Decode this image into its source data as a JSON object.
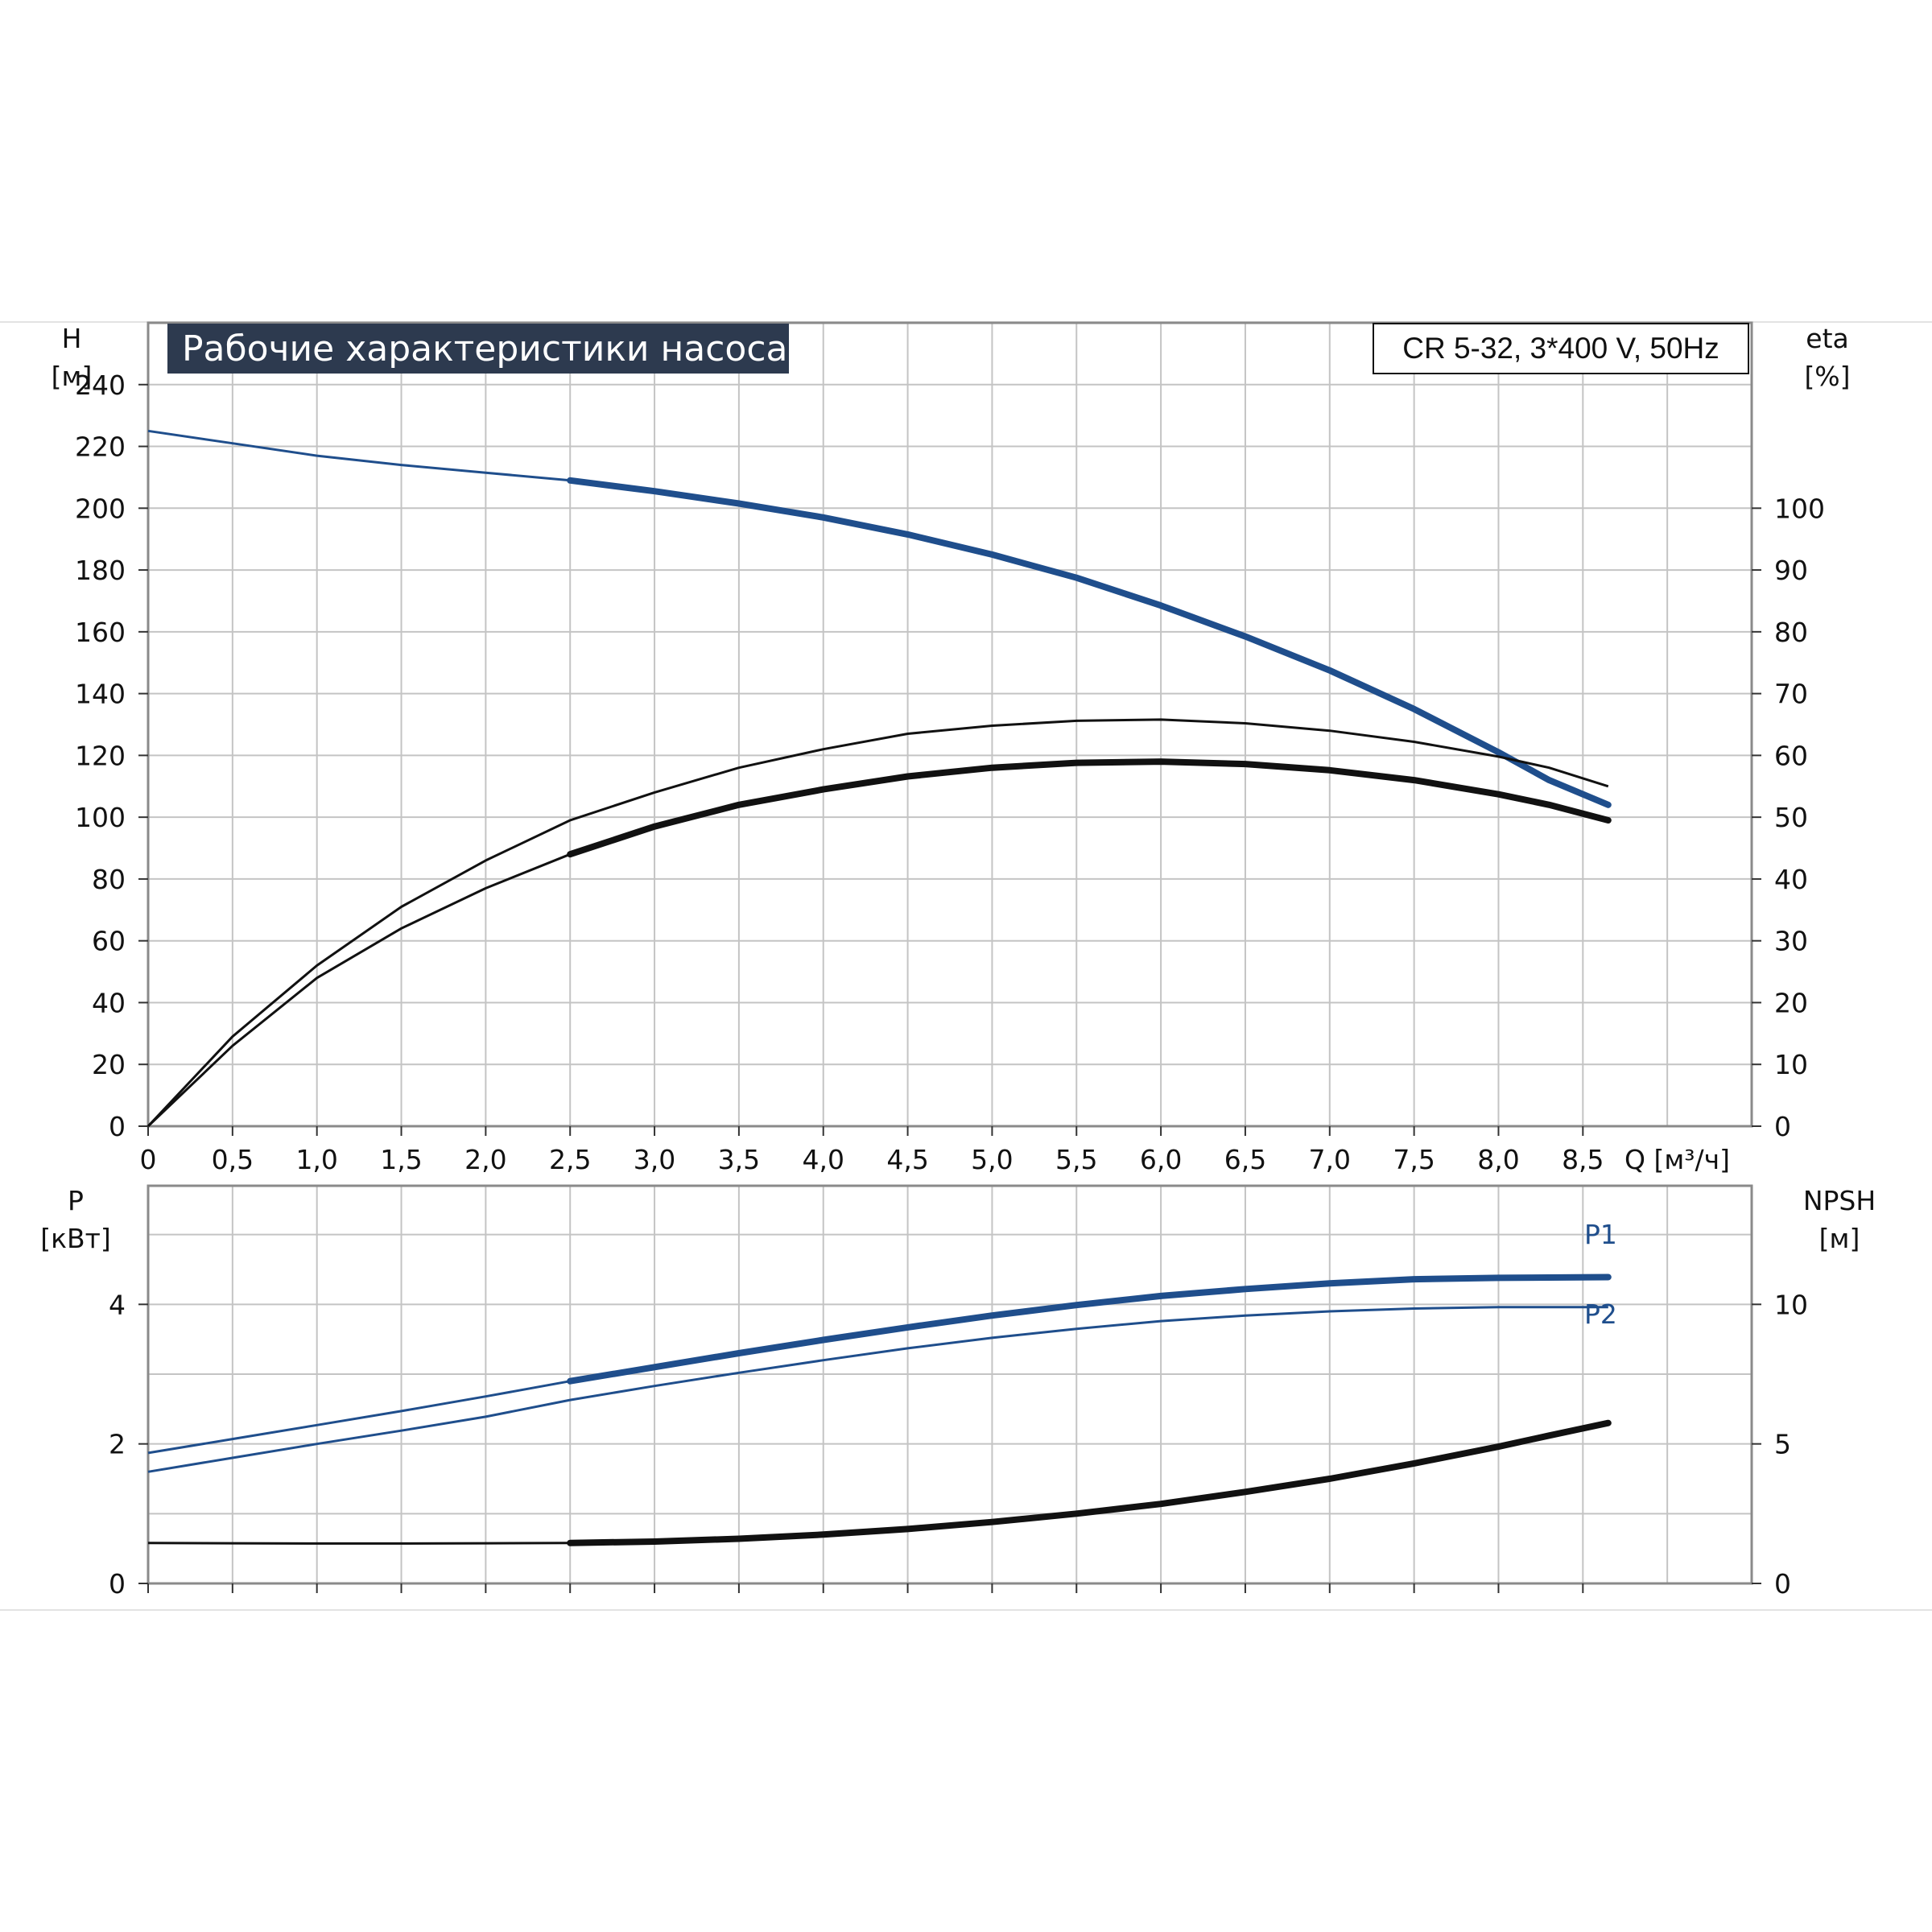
{
  "colors": {
    "blue": "#1f4e8c",
    "black": "#111111",
    "grid": "#c4c4c4",
    "title_bg": "#2d3a4f",
    "frame": "#8a8a8a"
  },
  "chart_data": [
    {
      "type": "line",
      "title": "Рабочие характеристики насоса",
      "model_label": "CR 5-32, 3*400 V, 50Hz",
      "xlabel": "Q [м³/ч]",
      "ylabel": {
        "name": "H",
        "unit": "[м]"
      },
      "y2label": {
        "name": "eta",
        "unit": "[%]"
      },
      "xlim": [
        0,
        9.5
      ],
      "ylim": [
        0,
        260
      ],
      "y2lim": [
        0,
        130
      ],
      "x_ticks": [
        "0",
        "0,5",
        "1,0",
        "1,5",
        "2,0",
        "2,5",
        "3,0",
        "3,5",
        "4,0",
        "4,5",
        "5,0",
        "5,5",
        "6,0",
        "6,5",
        "7,0",
        "7,5",
        "8,0",
        "8,5"
      ],
      "y_ticks": [
        0,
        20,
        40,
        60,
        80,
        100,
        120,
        140,
        160,
        180,
        200,
        220,
        240
      ],
      "y2_ticks": [
        0,
        10,
        20,
        30,
        40,
        50,
        60,
        70,
        80,
        90,
        100
      ],
      "grid": true,
      "series": [
        {
          "role": "head",
          "axis": "y",
          "color": "blue",
          "op_from": 2.5,
          "points": [
            [
              0,
              225
            ],
            [
              0.5,
              221
            ],
            [
              1,
              217
            ],
            [
              1.5,
              214
            ],
            [
              2,
              211.5
            ],
            [
              2.5,
              209
            ],
            [
              3,
              205.5
            ],
            [
              3.5,
              201.5
            ],
            [
              4,
              197
            ],
            [
              4.5,
              191.5
            ],
            [
              5,
              185
            ],
            [
              5.5,
              177.5
            ],
            [
              6,
              168.5
            ],
            [
              6.5,
              158.5
            ],
            [
              7,
              147.5
            ],
            [
              7.5,
              135
            ],
            [
              8,
              121
            ],
            [
              8.3,
              112
            ],
            [
              8.65,
              104
            ]
          ]
        },
        {
          "role": "eta_upper",
          "axis": "y2",
          "color": "black",
          "op_from": 99,
          "points": [
            [
              0,
              0
            ],
            [
              0.5,
              14.5
            ],
            [
              1,
              26
            ],
            [
              1.5,
              35.5
            ],
            [
              2,
              43
            ],
            [
              2.5,
              49.5
            ],
            [
              3,
              54
            ],
            [
              3.5,
              58
            ],
            [
              4,
              61
            ],
            [
              4.5,
              63.5
            ],
            [
              5,
              64.8
            ],
            [
              5.5,
              65.6
            ],
            [
              6,
              65.8
            ],
            [
              6.5,
              65.2
            ],
            [
              7,
              64
            ],
            [
              7.5,
              62.2
            ],
            [
              8,
              59.8
            ],
            [
              8.3,
              58
            ],
            [
              8.65,
              55
            ]
          ]
        },
        {
          "role": "eta",
          "axis": "y2",
          "color": "black",
          "op_from": 2.5,
          "points": [
            [
              0,
              0
            ],
            [
              0.5,
              13
            ],
            [
              1,
              24
            ],
            [
              1.5,
              32
            ],
            [
              2,
              38.5
            ],
            [
              2.5,
              44
            ],
            [
              3,
              48.5
            ],
            [
              3.5,
              52
            ],
            [
              4,
              54.5
            ],
            [
              4.5,
              56.6
            ],
            [
              5,
              58
            ],
            [
              5.5,
              58.8
            ],
            [
              6,
              59
            ],
            [
              6.5,
              58.6
            ],
            [
              7,
              57.6
            ],
            [
              7.5,
              56
            ],
            [
              8,
              53.7
            ],
            [
              8.3,
              52
            ],
            [
              8.65,
              49.5
            ]
          ]
        }
      ]
    },
    {
      "type": "line",
      "ylabel": {
        "name": "P",
        "unit": "[кВт]"
      },
      "y2label": {
        "name": "NPSH",
        "unit": "[м]"
      },
      "xlim": [
        0,
        9.5
      ],
      "ylim": [
        0,
        5.7
      ],
      "y2lim": [
        0,
        14.25
      ],
      "y_ticks": [
        0,
        2,
        4
      ],
      "y2_ticks": [
        0,
        5,
        10
      ],
      "grid": true,
      "series": [
        {
          "name": "P1",
          "role": "p1",
          "axis": "y",
          "color": "blue",
          "op_from": 2.5,
          "points": [
            [
              0,
              1.87
            ],
            [
              0.5,
              2.07
            ],
            [
              1,
              2.27
            ],
            [
              1.5,
              2.47
            ],
            [
              2,
              2.68
            ],
            [
              2.5,
              2.9
            ],
            [
              3,
              3.1
            ],
            [
              3.5,
              3.3
            ],
            [
              4,
              3.49
            ],
            [
              4.5,
              3.67
            ],
            [
              5,
              3.84
            ],
            [
              5.5,
              3.99
            ],
            [
              6,
              4.12
            ],
            [
              6.5,
              4.22
            ],
            [
              7,
              4.3
            ],
            [
              7.5,
              4.36
            ],
            [
              8,
              4.38
            ],
            [
              8.65,
              4.39
            ]
          ]
        },
        {
          "name": "P2",
          "role": "p2",
          "axis": "y",
          "color": "blue",
          "op_from": 99,
          "points": [
            [
              0,
              1.6
            ],
            [
              0.5,
              1.8
            ],
            [
              1,
              2
            ],
            [
              1.5,
              2.19
            ],
            [
              2,
              2.39
            ],
            [
              2.5,
              2.63
            ],
            [
              3,
              2.83
            ],
            [
              3.5,
              3.02
            ],
            [
              4,
              3.2
            ],
            [
              4.5,
              3.37
            ],
            [
              5,
              3.52
            ],
            [
              5.5,
              3.65
            ],
            [
              6,
              3.76
            ],
            [
              6.5,
              3.84
            ],
            [
              7,
              3.9
            ],
            [
              7.5,
              3.94
            ],
            [
              8,
              3.96
            ],
            [
              8.65,
              3.96
            ]
          ]
        },
        {
          "role": "npsh",
          "axis": "y2",
          "color": "black",
          "op_from": 2.5,
          "points": [
            [
              0,
              1.45
            ],
            [
              0.5,
              1.44
            ],
            [
              1,
              1.43
            ],
            [
              1.5,
              1.43
            ],
            [
              2,
              1.44
            ],
            [
              2.5,
              1.45
            ],
            [
              3,
              1.5
            ],
            [
              3.5,
              1.6
            ],
            [
              4,
              1.75
            ],
            [
              4.5,
              1.95
            ],
            [
              5,
              2.2
            ],
            [
              5.5,
              2.5
            ],
            [
              6,
              2.85
            ],
            [
              6.5,
              3.28
            ],
            [
              7,
              3.75
            ],
            [
              7.5,
              4.3
            ],
            [
              8,
              4.9
            ],
            [
              8.3,
              5.3
            ],
            [
              8.65,
              5.75
            ]
          ]
        }
      ]
    }
  ]
}
